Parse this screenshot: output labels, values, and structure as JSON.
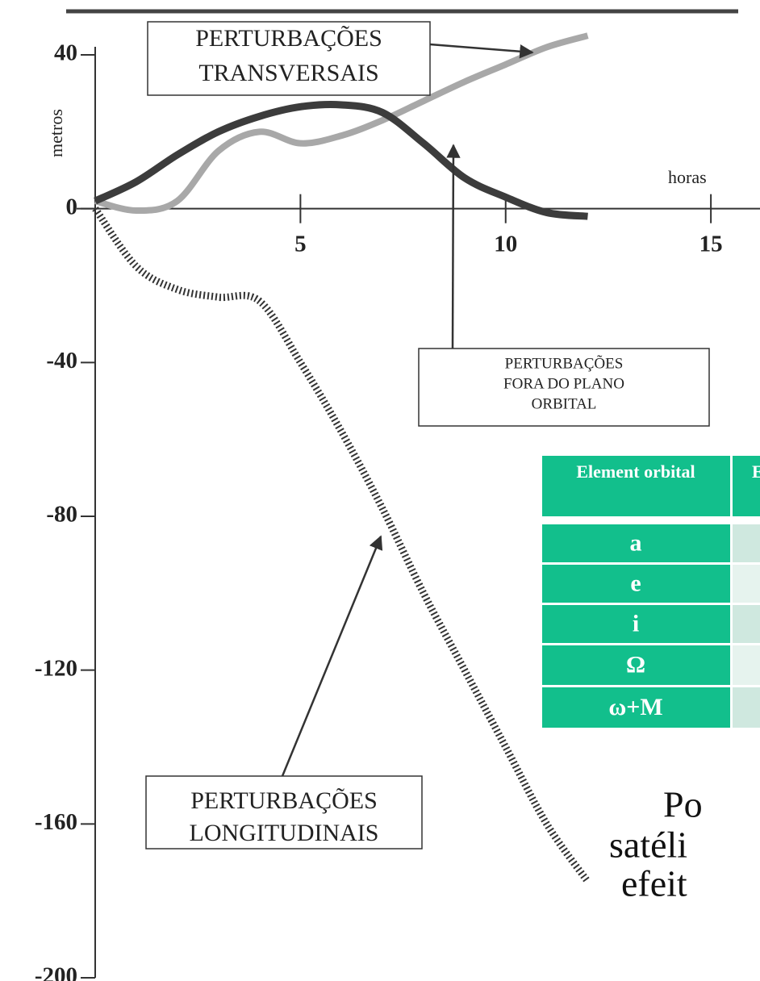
{
  "chart_data": {
    "type": "line",
    "ylabel": "metros",
    "xlabel": "horas",
    "x": [
      0,
      1,
      2,
      3,
      4,
      5,
      6,
      7,
      8,
      9,
      10,
      11,
      12
    ],
    "xlim": [
      0,
      16
    ],
    "xticks": [
      5,
      10,
      15
    ],
    "ylim": [
      -200,
      40
    ],
    "yticks": [
      40,
      0,
      -40,
      -80,
      -120,
      -160,
      -200
    ],
    "series": [
      {
        "color": "#a8a8a8",
        "style": "solid",
        "values": [
          2,
          -0.5,
          2,
          15,
          20,
          17,
          19,
          23,
          28,
          33,
          37.5,
          42,
          45
        ]
      },
      {
        "color": "#3c3c3c",
        "style": "solid",
        "values": [
          2,
          7,
          14,
          20,
          24,
          26.5,
          27,
          25,
          17,
          8,
          3,
          -1,
          -2
        ]
      },
      {
        "color": "#333333",
        "style": "hatched",
        "values": [
          0,
          -15,
          -21,
          -23,
          -24,
          -40,
          -58,
          -78,
          -100,
          -120,
          -140,
          -160,
          -175
        ]
      }
    ],
    "annotations": [
      {
        "lines": [
          "PERTURBAÇÕES",
          "TRANSVERSAIS"
        ]
      },
      {
        "lines": [
          "PERTURBAÇÕES",
          "FORA DO PLANO",
          "ORBITAL"
        ]
      },
      {
        "lines": [
          "PERTURBAÇÕES",
          "LONGITUDINAIS"
        ]
      }
    ]
  },
  "table": {
    "header": [
      "Element orbital",
      "E"
    ],
    "rows": [
      "a",
      "e",
      "i",
      "Ω",
      "ω+M"
    ]
  },
  "text": {
    "lines": [
      "Po",
      "satéli",
      "efeit"
    ]
  }
}
